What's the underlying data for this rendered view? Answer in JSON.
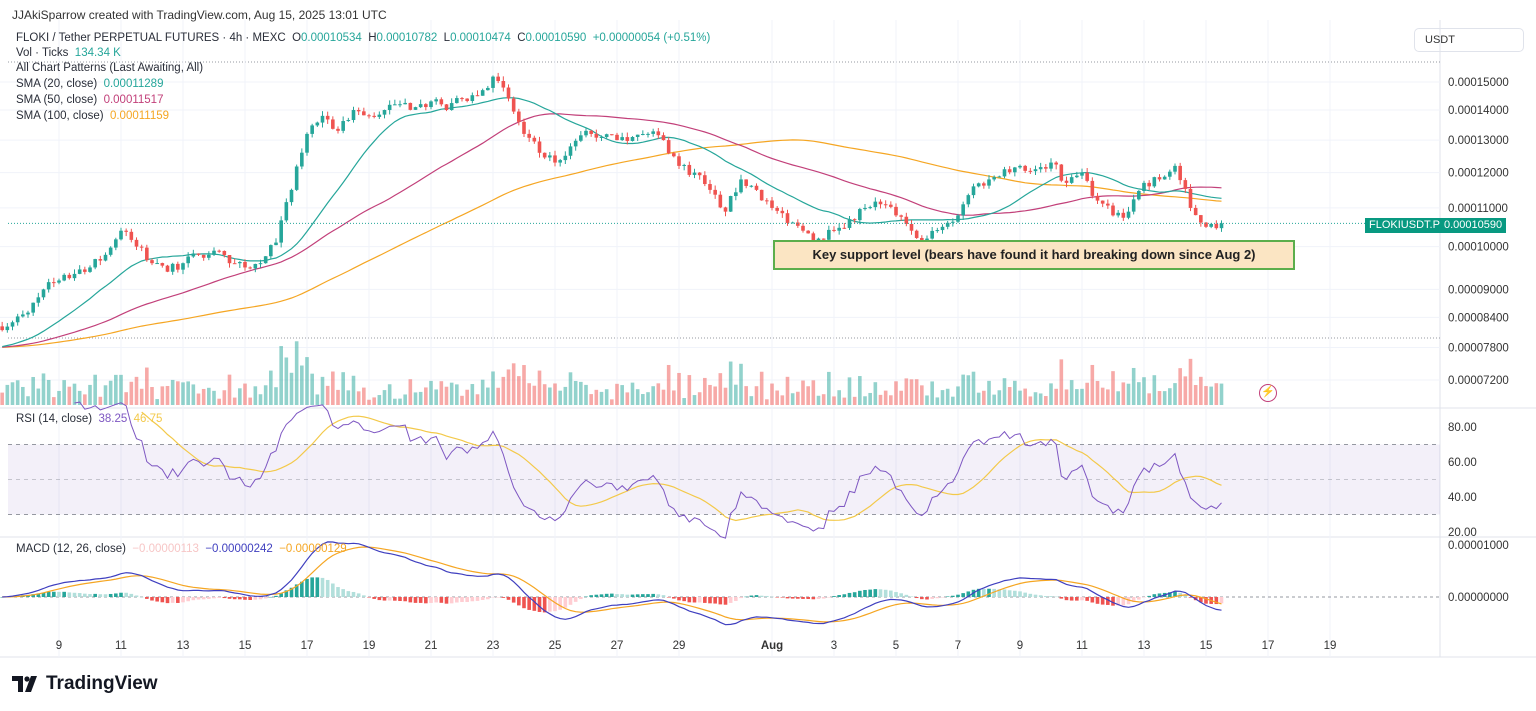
{
  "credit": "JJAkiSparrow created with TradingView.com, Aug 15, 2025 13:01 UTC",
  "header": {
    "symbol": "FLOKI / Tether PERPETUAL FUTURES · 4h · MEXC",
    "o_label": "O",
    "o": "0.00010534",
    "h_label": "H",
    "h": "0.00010782",
    "l_label": "L",
    "l": "0.00010474",
    "c_label": "C",
    "c": "0.00010590",
    "change": "+0.00000054 (+0.51%)"
  },
  "indicators": {
    "vol": {
      "label": "Vol · Ticks",
      "value": "134.34 K"
    },
    "patterns": "All Chart Patterns (Last Awaiting, All)",
    "sma20": {
      "label": "SMA (20, close)",
      "value": "0.00011289",
      "color": "#26a69a"
    },
    "sma50": {
      "label": "SMA (50, close)",
      "value": "0.00011517",
      "color": "#c2407a"
    },
    "sma100": {
      "label": "SMA (100, close)",
      "value": "0.00011159",
      "color": "#f5a623"
    },
    "rsi": {
      "label": "RSI (14, close)",
      "value": "38.25",
      "ma": "46.75"
    },
    "macd": {
      "label": "MACD (12, 26, close)",
      "hist": "−0.00000113",
      "macd": "−0.00000242",
      "signal": "−0.00000129"
    }
  },
  "currency": "USDT",
  "last_price": {
    "symbol": "FLOKIUSDT.P",
    "value": "0.00010590"
  },
  "annotation": "Key support level (bears have found it hard breaking down since Aug 2)",
  "brand": "TradingView",
  "colors": {
    "up": "#26a69a",
    "down": "#ef5350",
    "sma20": "#26a69a",
    "sma50": "#c2407a",
    "sma100": "#f5a623",
    "rsi": "#7e57c2",
    "rsi_ma": "#f3c94a",
    "macd": "#3f3fbf",
    "signal": "#f5a623"
  },
  "chart_data": {
    "type": "candlestick",
    "timeframe": "4h",
    "price_scale": "log",
    "price_ticks": [
      "0.00015000",
      "0.00014000",
      "0.00013000",
      "0.00012000",
      "0.00011000",
      "0.00010000",
      "0.00009000",
      "0.00008400",
      "0.00007800",
      "0.00007200"
    ],
    "rsi_ticks": [
      "80.00",
      "60.00",
      "40.00",
      "20.00"
    ],
    "rsi_bands": [
      70,
      30
    ],
    "macd_ticks": [
      "0.00001000",
      "0.00000000"
    ],
    "x_ticks": [
      "9",
      "11",
      "13",
      "15",
      "17",
      "19",
      "21",
      "23",
      "25",
      "27",
      "29",
      "Aug",
      "3",
      "5",
      "7",
      "9",
      "11",
      "13",
      "15",
      "17",
      "19"
    ],
    "x_tick_dates": [
      "2025-07-09",
      "2025-07-11",
      "2025-07-13",
      "2025-07-15",
      "2025-07-17",
      "2025-07-19",
      "2025-07-21",
      "2025-07-23",
      "2025-07-25",
      "2025-07-27",
      "2025-07-29",
      "2025-08-01",
      "2025-08-03",
      "2025-08-05",
      "2025-08-07",
      "2025-08-09",
      "2025-08-11",
      "2025-08-13",
      "2025-08-15",
      "2025-08-17",
      "2025-08-19"
    ],
    "approx_closes_12h": [
      [
        "2025-07-07T12:00",
        8.3e-05
      ],
      [
        "2025-07-08T00:00",
        8.5e-05
      ],
      [
        "2025-07-08T12:00",
        9e-05
      ],
      [
        "2025-07-09T00:00",
        9.2e-05
      ],
      [
        "2025-07-09T12:00",
        9.35e-05
      ],
      [
        "2025-07-10T00:00",
        9.5e-05
      ],
      [
        "2025-07-10T12:00",
        9.8e-05
      ],
      [
        "2025-07-11T00:00",
        0.000104
      ],
      [
        "2025-07-11T12:00",
        0.0001
      ],
      [
        "2025-07-12T00:00",
        9.6e-05
      ],
      [
        "2025-07-12T12:00",
        9.4e-05
      ],
      [
        "2025-07-13T00:00",
        9.6e-05
      ],
      [
        "2025-07-13T12:00",
        9.8e-05
      ],
      [
        "2025-07-14T00:00",
        9.9e-05
      ],
      [
        "2025-07-14T12:00",
        9.6e-05
      ],
      [
        "2025-07-15T00:00",
        9.5e-05
      ],
      [
        "2025-07-15T12:00",
        9.6e-05
      ],
      [
        "2025-07-16T00:00",
        0.000101
      ],
      [
        "2025-07-16T12:00",
        0.000115
      ],
      [
        "2025-07-17T00:00",
        0.000132
      ],
      [
        "2025-07-17T12:00",
        0.000138
      ],
      [
        "2025-07-18T00:00",
        0.000133
      ],
      [
        "2025-07-18T12:00",
        0.00014
      ],
      [
        "2025-07-19T00:00",
        0.000138
      ],
      [
        "2025-07-19T12:00",
        0.00014
      ],
      [
        "2025-07-20T00:00",
        0.000142
      ],
      [
        "2025-07-20T12:00",
        0.000141
      ],
      [
        "2025-07-21T00:00",
        0.000143
      ],
      [
        "2025-07-21T12:00",
        0.00014
      ],
      [
        "2025-07-22T00:00",
        0.000144
      ],
      [
        "2025-07-22T12:00",
        0.000145
      ],
      [
        "2025-07-23T00:00",
        0.000152
      ],
      [
        "2025-07-23T12:00",
        0.000144
      ],
      [
        "2025-07-24T00:00",
        0.000132
      ],
      [
        "2025-07-24T12:00",
        0.000126
      ],
      [
        "2025-07-25T00:00",
        0.000123
      ],
      [
        "2025-07-25T12:00",
        0.000128
      ],
      [
        "2025-07-26T00:00",
        0.000133
      ],
      [
        "2025-07-26T12:00",
        0.000131
      ],
      [
        "2025-07-27T00:00",
        0.00013
      ],
      [
        "2025-07-27T12:00",
        0.000131
      ],
      [
        "2025-07-28T00:00",
        0.000132
      ],
      [
        "2025-07-28T12:00",
        0.00013
      ],
      [
        "2025-07-29T00:00",
        0.000122
      ],
      [
        "2025-07-29T12:00",
        0.00012
      ],
      [
        "2025-07-30T00:00",
        0.000115
      ],
      [
        "2025-07-30T12:00",
        0.000109
      ],
      [
        "2025-07-31T00:00",
        0.000118
      ],
      [
        "2025-07-31T12:00",
        0.000115
      ],
      [
        "2025-08-01T00:00",
        0.00011
      ],
      [
        "2025-08-01T12:00",
        0.000106
      ],
      [
        "2025-08-02T00:00",
        0.000104
      ],
      [
        "2025-08-02T12:00",
        0.000102
      ],
      [
        "2025-08-03T00:00",
        0.000104
      ],
      [
        "2025-08-03T12:00",
        0.000107
      ],
      [
        "2025-08-04T00:00",
        0.00011
      ],
      [
        "2025-08-04T12:00",
        0.000111
      ],
      [
        "2025-08-05T00:00",
        0.000108
      ],
      [
        "2025-08-05T12:00",
        0.000104
      ],
      [
        "2025-08-06T00:00",
        0.000102
      ],
      [
        "2025-08-06T12:00",
        0.000105
      ],
      [
        "2025-08-07T00:00",
        0.000108
      ],
      [
        "2025-08-07T12:00",
        0.000116
      ],
      [
        "2025-08-08T00:00",
        0.000118
      ],
      [
        "2025-08-08T12:00",
        0.000121
      ],
      [
        "2025-08-09T00:00",
        0.000122
      ],
      [
        "2025-08-09T12:00",
        0.000121
      ],
      [
        "2025-08-10T00:00",
        0.000123
      ],
      [
        "2025-08-10T12:00",
        0.000117
      ],
      [
        "2025-08-11T00:00",
        0.00012
      ],
      [
        "2025-08-11T12:00",
        0.000112
      ],
      [
        "2025-08-12T00:00",
        0.000108
      ],
      [
        "2025-08-12T12:00",
        0.000109
      ],
      [
        "2025-08-13T00:00",
        0.000117
      ],
      [
        "2025-08-13T12:00",
        0.000118
      ],
      [
        "2025-08-14T00:00",
        0.000122
      ],
      [
        "2025-08-14T12:00",
        0.00011
      ],
      [
        "2025-08-15T00:00",
        0.000105
      ],
      [
        "2025-08-15T12:00",
        0.0001059
      ]
    ]
  }
}
